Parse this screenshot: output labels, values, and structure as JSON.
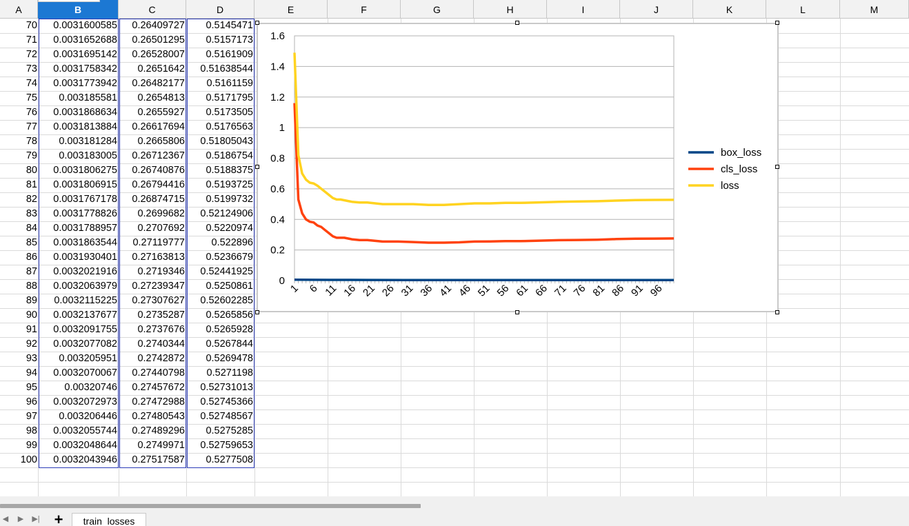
{
  "columns": [
    "A",
    "B",
    "C",
    "D",
    "E",
    "F",
    "G",
    "H",
    "I",
    "J",
    "K",
    "L",
    "M"
  ],
  "selected_column": "B",
  "rows": [
    {
      "n": "70",
      "b": "0.0031600585",
      "c": "0.26409727",
      "d": "0.5145471"
    },
    {
      "n": "71",
      "b": "0.0031652688",
      "c": "0.26501295",
      "d": "0.5157173"
    },
    {
      "n": "72",
      "b": "0.0031695142",
      "c": "0.26528007",
      "d": "0.5161909"
    },
    {
      "n": "73",
      "b": "0.0031758342",
      "c": "0.2651642",
      "d": "0.51638544"
    },
    {
      "n": "74",
      "b": "0.0031773942",
      "c": "0.26482177",
      "d": "0.5161159"
    },
    {
      "n": "75",
      "b": "0.003185581",
      "c": "0.2654813",
      "d": "0.5171795"
    },
    {
      "n": "76",
      "b": "0.0031868634",
      "c": "0.2655927",
      "d": "0.5173505"
    },
    {
      "n": "77",
      "b": "0.0031813884",
      "c": "0.26617694",
      "d": "0.5176563"
    },
    {
      "n": "78",
      "b": "0.003181284",
      "c": "0.2665806",
      "d": "0.51805043"
    },
    {
      "n": "79",
      "b": "0.003183005",
      "c": "0.26712367",
      "d": "0.5186754"
    },
    {
      "n": "80",
      "b": "0.0031806275",
      "c": "0.26740876",
      "d": "0.5188375"
    },
    {
      "n": "81",
      "b": "0.0031806915",
      "c": "0.26794416",
      "d": "0.5193725"
    },
    {
      "n": "82",
      "b": "0.0031767178",
      "c": "0.26874715",
      "d": "0.5199732"
    },
    {
      "n": "83",
      "b": "0.0031778826",
      "c": "0.2699682",
      "d": "0.52124906"
    },
    {
      "n": "84",
      "b": "0.0031788957",
      "c": "0.2707692",
      "d": "0.5220974"
    },
    {
      "n": "85",
      "b": "0.0031863544",
      "c": "0.27119777",
      "d": "0.522896"
    },
    {
      "n": "86",
      "b": "0.0031930401",
      "c": "0.27163813",
      "d": "0.5236679"
    },
    {
      "n": "87",
      "b": "0.0032021916",
      "c": "0.2719346",
      "d": "0.52441925"
    },
    {
      "n": "88",
      "b": "0.0032063979",
      "c": "0.27239347",
      "d": "0.5250861"
    },
    {
      "n": "89",
      "b": "0.0032115225",
      "c": "0.27307627",
      "d": "0.52602285"
    },
    {
      "n": "90",
      "b": "0.0032137677",
      "c": "0.2735287",
      "d": "0.5265856"
    },
    {
      "n": "91",
      "b": "0.0032091755",
      "c": "0.2737676",
      "d": "0.5265928"
    },
    {
      "n": "92",
      "b": "0.0032077082",
      "c": "0.2740344",
      "d": "0.5267844"
    },
    {
      "n": "93",
      "b": "0.003205951",
      "c": "0.2742872",
      "d": "0.5269478"
    },
    {
      "n": "94",
      "b": "0.0032070067",
      "c": "0.27440798",
      "d": "0.5271198"
    },
    {
      "n": "95",
      "b": "0.00320746",
      "c": "0.27457672",
      "d": "0.52731013"
    },
    {
      "n": "96",
      "b": "0.0032072973",
      "c": "0.27472988",
      "d": "0.52745366"
    },
    {
      "n": "97",
      "b": "0.003206446",
      "c": "0.27480543",
      "d": "0.52748567"
    },
    {
      "n": "98",
      "b": "0.0032055744",
      "c": "0.27489296",
      "d": "0.5275285"
    },
    {
      "n": "99",
      "b": "0.0032048644",
      "c": "0.2749971",
      "d": "0.52759653"
    },
    {
      "n": "100",
      "b": "0.0032043946",
      "c": "0.27517587",
      "d": "0.5277508"
    }
  ],
  "chart_data": {
    "type": "line",
    "x_tick_labels": [
      "1",
      "6",
      "11",
      "16",
      "21",
      "26",
      "31",
      "36",
      "41",
      "46",
      "51",
      "56",
      "61",
      "66",
      "71",
      "76",
      "81",
      "86",
      "91",
      "96"
    ],
    "y_tick_labels": [
      "0",
      "0.2",
      "0.4",
      "0.6",
      "0.8",
      "1",
      "1.2",
      "1.4",
      "1.6"
    ],
    "ylim": [
      0,
      1.6
    ],
    "xlim": [
      1,
      100
    ],
    "grid": true,
    "legend_placement": "right",
    "series": [
      {
        "name": "box_loss",
        "color": "#004586",
        "x": [
          1,
          10,
          20,
          30,
          40,
          50,
          60,
          70,
          80,
          90,
          100
        ],
        "values": [
          0.006,
          0.0045,
          0.004,
          0.0036,
          0.0034,
          0.0033,
          0.0032,
          0.00316,
          0.003181,
          0.003214,
          0.003204
        ]
      },
      {
        "name": "cls_loss",
        "color": "#ff420e",
        "x": [
          1,
          2,
          3,
          4,
          5,
          6,
          7,
          8,
          9,
          10,
          11,
          12,
          13,
          14,
          15,
          16,
          18,
          20,
          24,
          28,
          32,
          36,
          40,
          44,
          48,
          52,
          56,
          60,
          64,
          70,
          75,
          80,
          85,
          90,
          95,
          100
        ],
        "values": [
          1.16,
          0.53,
          0.44,
          0.4,
          0.385,
          0.38,
          0.36,
          0.35,
          0.33,
          0.31,
          0.29,
          0.28,
          0.28,
          0.28,
          0.275,
          0.27,
          0.265,
          0.265,
          0.255,
          0.255,
          0.252,
          0.248,
          0.248,
          0.25,
          0.255,
          0.256,
          0.258,
          0.258,
          0.26,
          0.264,
          0.2655,
          0.2674,
          0.2712,
          0.2735,
          0.2746,
          0.2752
        ]
      },
      {
        "name": "loss",
        "color": "#ffd320",
        "x": [
          1,
          2,
          3,
          4,
          5,
          6,
          7,
          8,
          9,
          10,
          11,
          12,
          13,
          14,
          15,
          16,
          18,
          20,
          24,
          28,
          32,
          36,
          40,
          44,
          48,
          52,
          56,
          60,
          64,
          70,
          75,
          80,
          85,
          90,
          95,
          100
        ],
        "values": [
          1.49,
          0.82,
          0.7,
          0.66,
          0.64,
          0.635,
          0.62,
          0.6,
          0.58,
          0.56,
          0.54,
          0.53,
          0.53,
          0.525,
          0.52,
          0.515,
          0.51,
          0.51,
          0.5,
          0.5,
          0.5,
          0.495,
          0.495,
          0.5,
          0.505,
          0.505,
          0.508,
          0.508,
          0.51,
          0.5145,
          0.5172,
          0.5188,
          0.5229,
          0.5266,
          0.5273,
          0.5278
        ]
      }
    ]
  },
  "sheet_tab": {
    "label": "train_losses"
  },
  "colors": {
    "header_bg": "#f2f2f2",
    "selected_header": "#1c78d3",
    "selection_border": "#2a3ab7",
    "grid_line": "#dadada"
  }
}
